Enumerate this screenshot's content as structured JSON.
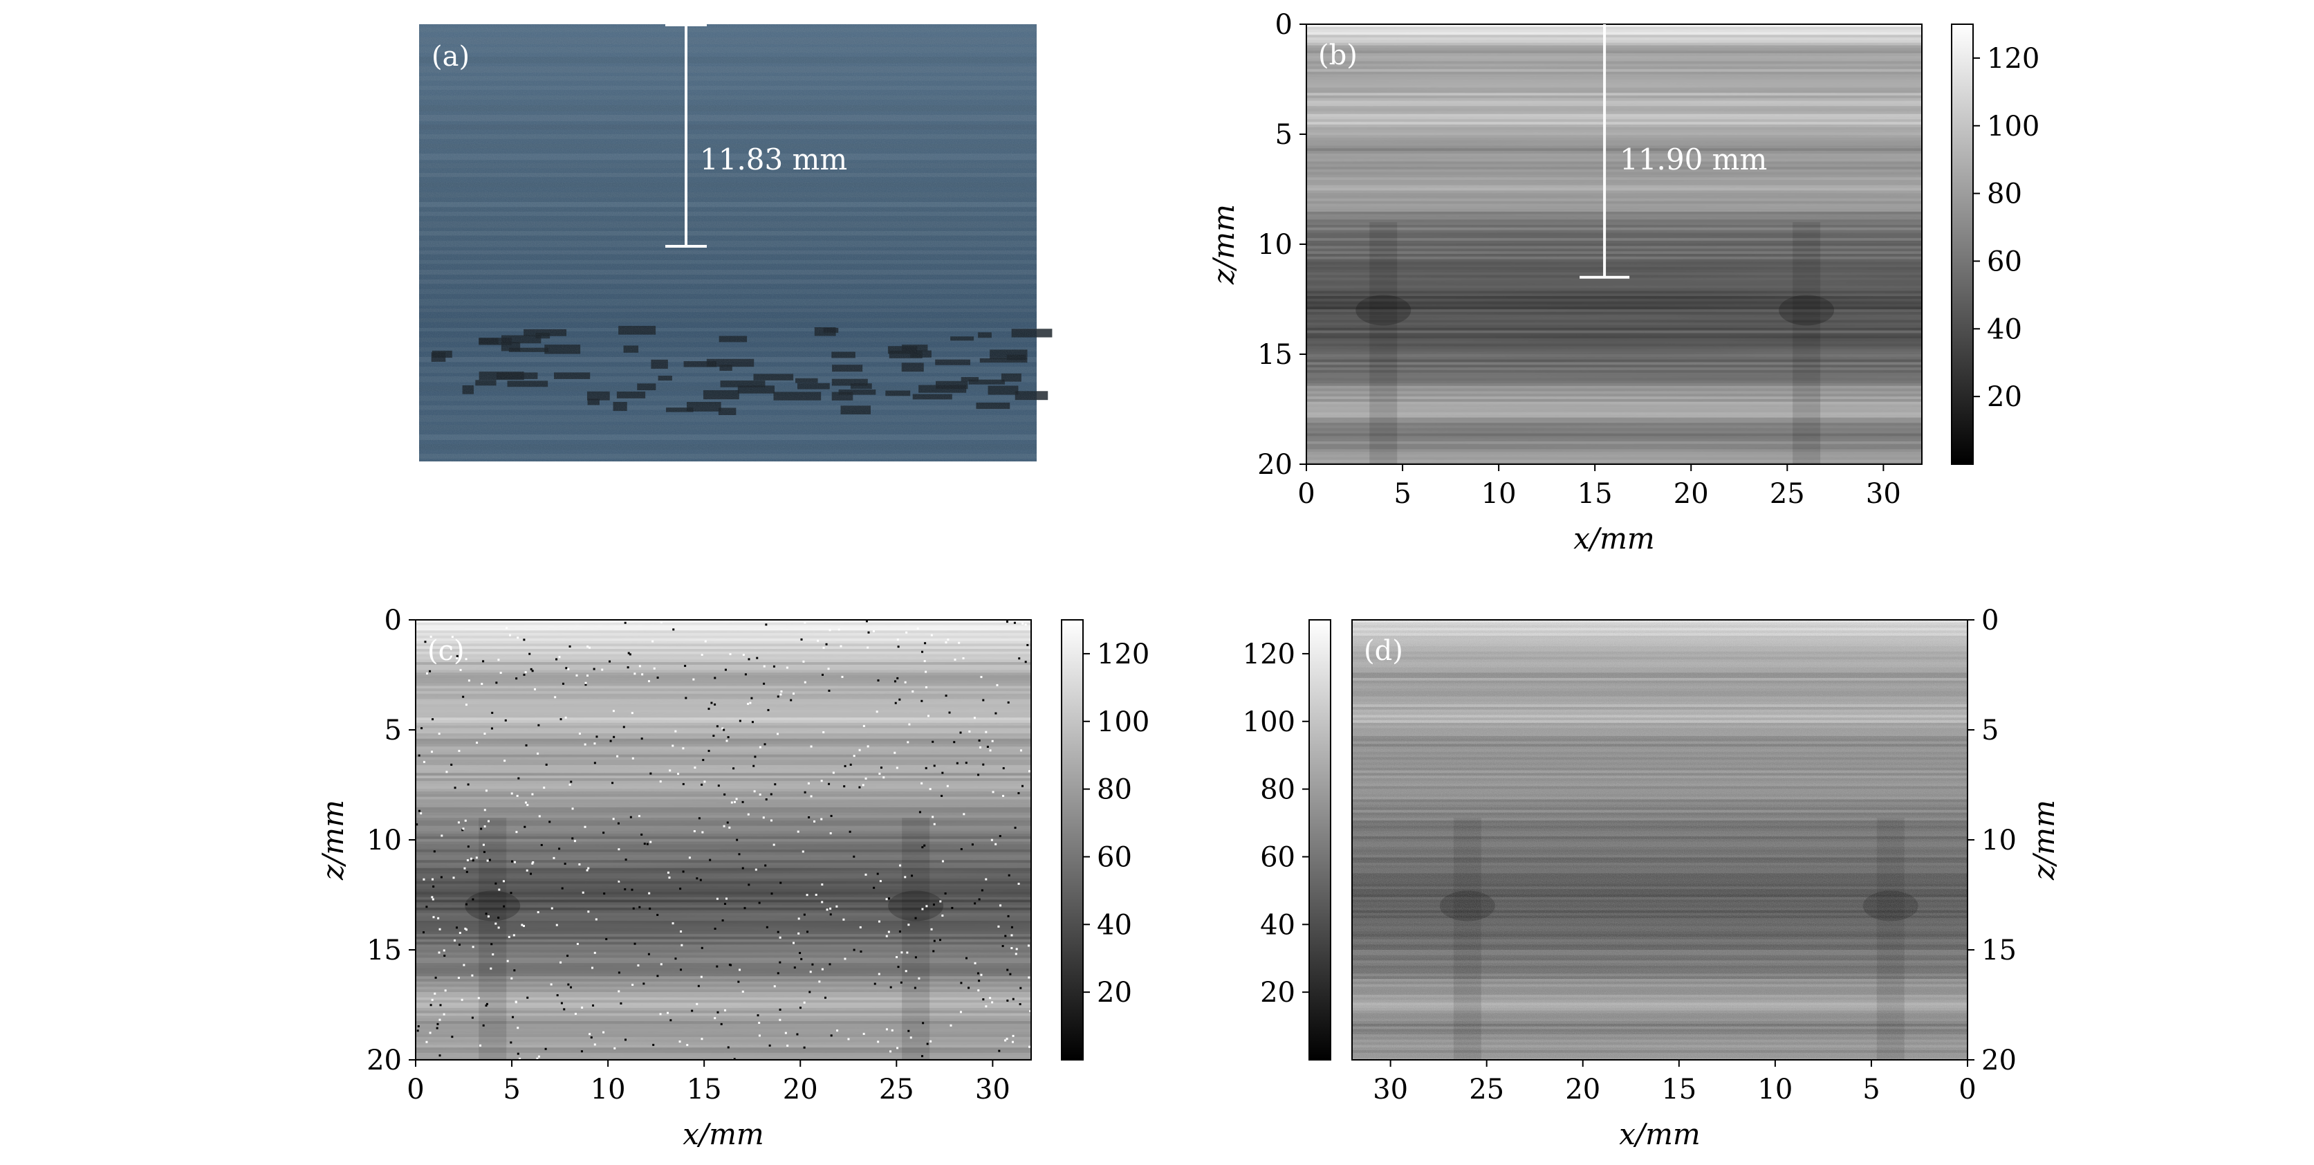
{
  "figure": {
    "panels": [
      {
        "id": "a",
        "tag": "(a)",
        "kind": "photo",
        "measurement": "11.83 mm"
      },
      {
        "id": "b",
        "tag": "(b)",
        "kind": "heatmap",
        "measurement": "11.90 mm"
      },
      {
        "id": "c",
        "tag": "(c)",
        "kind": "heatmap"
      },
      {
        "id": "d",
        "tag": "(d)",
        "kind": "heatmap"
      }
    ]
  },
  "chart_data": [
    {
      "panel": "b",
      "type": "heatmap",
      "title": "",
      "xlabel": "x/mm",
      "ylabel": "z/mm",
      "xlim": [
        0,
        32
      ],
      "ylim": [
        20,
        0
      ],
      "xticks": [
        0,
        5,
        10,
        15,
        20,
        25,
        30
      ],
      "yticks": [
        0,
        5,
        10,
        15,
        20
      ],
      "colorbar": {
        "min": 0,
        "max": 130,
        "ticks": [
          20,
          40,
          60,
          80,
          100,
          120
        ],
        "position": "right",
        "cmap": "gray"
      },
      "annotation": {
        "text": "11.90 mm",
        "x": 15.5,
        "z_top": 0,
        "z_bottom": 11.5
      },
      "profile": [
        {
          "z": 0,
          "v": 120
        },
        {
          "z": 0.7,
          "v": 105
        },
        {
          "z": 1.2,
          "v": 80
        },
        {
          "z": 2.5,
          "v": 88
        },
        {
          "z": 4.5,
          "v": 96
        },
        {
          "z": 5.5,
          "v": 72
        },
        {
          "z": 7.5,
          "v": 82
        },
        {
          "z": 9,
          "v": 60
        },
        {
          "z": 10.5,
          "v": 50
        },
        {
          "z": 12.5,
          "v": 35
        },
        {
          "z": 14,
          "v": 42
        },
        {
          "z": 16,
          "v": 60
        },
        {
          "z": 17.5,
          "v": 90
        },
        {
          "z": 18.3,
          "v": 60
        },
        {
          "z": 20,
          "v": 80
        }
      ]
    },
    {
      "panel": "c",
      "type": "heatmap",
      "title": "",
      "xlabel": "x/mm",
      "ylabel": "z/mm",
      "xlim": [
        0,
        32
      ],
      "ylim": [
        20,
        0
      ],
      "xticks": [
        0,
        5,
        10,
        15,
        20,
        25,
        30
      ],
      "yticks": [
        0,
        5,
        10,
        15,
        20
      ],
      "colorbar": {
        "min": 0,
        "max": 130,
        "ticks": [
          20,
          40,
          60,
          80,
          100,
          120
        ],
        "position": "right",
        "cmap": "gray"
      },
      "noise": "salt-and-pepper",
      "profile": [
        {
          "z": 0,
          "v": 125
        },
        {
          "z": 1,
          "v": 110
        },
        {
          "z": 2.5,
          "v": 85
        },
        {
          "z": 4.5,
          "v": 100
        },
        {
          "z": 5.5,
          "v": 80
        },
        {
          "z": 7.5,
          "v": 85
        },
        {
          "z": 9,
          "v": 65
        },
        {
          "z": 10.5,
          "v": 55
        },
        {
          "z": 12.5,
          "v": 40
        },
        {
          "z": 14,
          "v": 48
        },
        {
          "z": 16,
          "v": 65
        },
        {
          "z": 17.5,
          "v": 95
        },
        {
          "z": 18.3,
          "v": 70
        },
        {
          "z": 20,
          "v": 85
        }
      ]
    },
    {
      "panel": "d",
      "type": "heatmap",
      "title": "",
      "xlabel": "x/mm",
      "ylabel": "z/mm",
      "xlim": [
        32,
        0
      ],
      "ylim": [
        20,
        0
      ],
      "xticks": [
        30,
        25,
        20,
        15,
        10,
        5,
        0
      ],
      "yticks": [
        0,
        5,
        10,
        15,
        20
      ],
      "colorbar": {
        "min": 0,
        "max": 130,
        "ticks": [
          20,
          40,
          60,
          80,
          100,
          120
        ],
        "position": "left",
        "cmap": "gray"
      },
      "noise": "gaussian",
      "profile": [
        {
          "z": 0,
          "v": 118
        },
        {
          "z": 1,
          "v": 95
        },
        {
          "z": 2.5,
          "v": 78
        },
        {
          "z": 4.5,
          "v": 92
        },
        {
          "z": 5.5,
          "v": 70
        },
        {
          "z": 7.5,
          "v": 75
        },
        {
          "z": 9,
          "v": 58
        },
        {
          "z": 10.5,
          "v": 50
        },
        {
          "z": 12.5,
          "v": 38
        },
        {
          "z": 14,
          "v": 45
        },
        {
          "z": 16,
          "v": 60
        },
        {
          "z": 17.5,
          "v": 88
        },
        {
          "z": 18.3,
          "v": 62
        },
        {
          "z": 20,
          "v": 78
        }
      ]
    }
  ]
}
